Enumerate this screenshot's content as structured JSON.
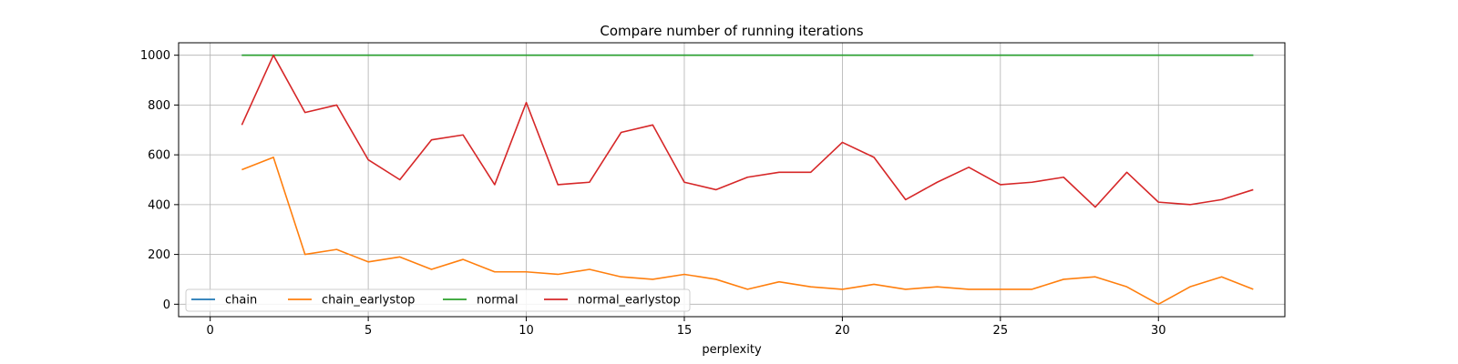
{
  "chart_data": {
    "type": "line",
    "title": "Compare number of running iterations",
    "xlabel": "perplexity",
    "ylabel": "",
    "xlim": [
      -1,
      34
    ],
    "ylim": [
      -50,
      1050
    ],
    "xticks": [
      "0",
      "5",
      "10",
      "15",
      "20",
      "25",
      "30"
    ],
    "yticks": [
      "0",
      "200",
      "400",
      "600",
      "800",
      "1000"
    ],
    "grid": true,
    "legend_placement": "lower-left",
    "x": [
      1,
      2,
      3,
      4,
      5,
      6,
      7,
      8,
      9,
      10,
      11,
      12,
      13,
      14,
      15,
      16,
      17,
      18,
      19,
      20,
      21,
      22,
      23,
      24,
      25,
      26,
      27,
      28,
      29,
      30,
      31,
      32,
      33
    ],
    "series": [
      {
        "name": "chain",
        "color": "#1f77b4",
        "values": [
          1000,
          1000,
          1000,
          1000,
          1000,
          1000,
          1000,
          1000,
          1000,
          1000,
          1000,
          1000,
          1000,
          1000,
          1000,
          1000,
          1000,
          1000,
          1000,
          1000,
          1000,
          1000,
          1000,
          1000,
          1000,
          1000,
          1000,
          1000,
          1000,
          1000,
          1000,
          1000,
          1000
        ]
      },
      {
        "name": "chain_earlystop",
        "color": "#ff7f0e",
        "values": [
          540,
          590,
          200,
          220,
          170,
          190,
          140,
          180,
          130,
          130,
          120,
          140,
          110,
          100,
          120,
          100,
          60,
          90,
          70,
          60,
          80,
          60,
          70,
          60,
          60,
          60,
          100,
          110,
          70,
          0,
          70,
          110,
          60
        ]
      },
      {
        "name": "normal",
        "color": "#2ca02c",
        "values": [
          1000,
          1000,
          1000,
          1000,
          1000,
          1000,
          1000,
          1000,
          1000,
          1000,
          1000,
          1000,
          1000,
          1000,
          1000,
          1000,
          1000,
          1000,
          1000,
          1000,
          1000,
          1000,
          1000,
          1000,
          1000,
          1000,
          1000,
          1000,
          1000,
          1000,
          1000,
          1000,
          1000
        ]
      },
      {
        "name": "normal_earlystop",
        "color": "#d62728",
        "values": [
          720,
          1000,
          770,
          800,
          580,
          500,
          660,
          680,
          480,
          810,
          480,
          490,
          690,
          720,
          490,
          460,
          510,
          530,
          530,
          650,
          590,
          420,
          490,
          550,
          480,
          490,
          510,
          390,
          530,
          410,
          400,
          420,
          460
        ]
      }
    ]
  }
}
